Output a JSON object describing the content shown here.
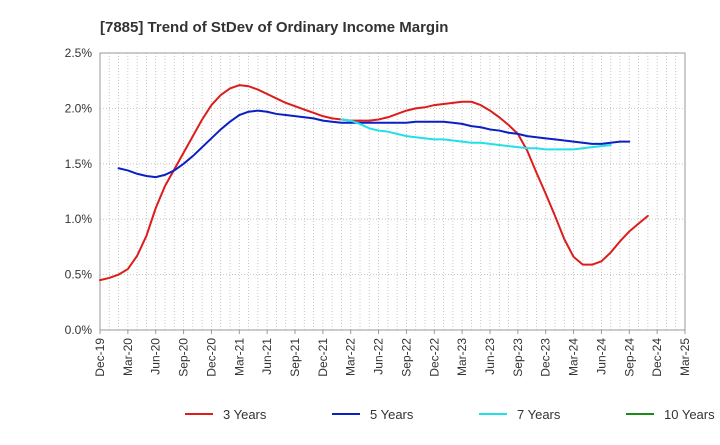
{
  "chart_data": {
    "type": "line",
    "title": "[7885]  Trend of StDev of Ordinary Income Margin",
    "xlabel": "",
    "ylabel": "",
    "x_tick_labels": [
      "Dec-19",
      "Mar-20",
      "Jun-20",
      "Sep-20",
      "Dec-20",
      "Mar-21",
      "Jun-21",
      "Sep-21",
      "Dec-21",
      "Mar-22",
      "Jun-22",
      "Sep-22",
      "Dec-22",
      "Mar-23",
      "Jun-23",
      "Sep-23",
      "Dec-23",
      "Mar-24",
      "Jun-24",
      "Sep-24",
      "Dec-24",
      "Mar-25"
    ],
    "y_ticks": [
      0.0,
      0.5,
      1.0,
      1.5,
      2.0,
      2.5
    ],
    "y_tick_labels": [
      "0.0%",
      "0.5%",
      "1.0%",
      "1.5%",
      "2.0%",
      "2.5%"
    ],
    "ylim": [
      0,
      2.5
    ],
    "y_unit": "%",
    "grid": true,
    "legend_position": "bottom",
    "series": [
      {
        "name": "3 Years",
        "color": "#dd1c1c",
        "start_index": 0,
        "values": [
          0.45,
          0.47,
          0.5,
          0.55,
          0.67,
          0.85,
          1.1,
          1.3,
          1.45,
          1.6,
          1.75,
          1.9,
          2.03,
          2.12,
          2.18,
          2.21,
          2.2,
          2.17,
          2.13,
          2.09,
          2.05,
          2.02,
          1.99,
          1.96,
          1.93,
          1.91,
          1.9,
          1.89,
          1.89,
          1.89,
          1.9,
          1.92,
          1.95,
          1.98,
          2.0,
          2.01,
          2.03,
          2.04,
          2.05,
          2.06,
          2.06,
          2.03,
          1.98,
          1.92,
          1.85,
          1.77,
          1.62,
          1.42,
          1.23,
          1.03,
          0.82,
          0.66,
          0.59,
          0.59,
          0.62,
          0.7,
          0.8,
          0.89,
          0.96,
          1.03
        ]
      },
      {
        "name": "5 Years",
        "color": "#0a1fc4",
        "start_index": 2,
        "values": [
          1.46,
          1.44,
          1.41,
          1.39,
          1.38,
          1.4,
          1.44,
          1.5,
          1.57,
          1.65,
          1.73,
          1.81,
          1.88,
          1.94,
          1.97,
          1.98,
          1.97,
          1.95,
          1.94,
          1.93,
          1.92,
          1.91,
          1.89,
          1.88,
          1.87,
          1.87,
          1.87,
          1.87,
          1.87,
          1.87,
          1.87,
          1.87,
          1.88,
          1.88,
          1.88,
          1.88,
          1.87,
          1.86,
          1.84,
          1.83,
          1.81,
          1.8,
          1.78,
          1.77,
          1.75,
          1.74,
          1.73,
          1.72,
          1.71,
          1.7,
          1.69,
          1.68,
          1.68,
          1.69,
          1.7,
          1.7
        ]
      },
      {
        "name": "7 Years",
        "color": "#22e0e8",
        "start_index": 26,
        "values": [
          1.9,
          1.89,
          1.86,
          1.82,
          1.8,
          1.79,
          1.77,
          1.75,
          1.74,
          1.73,
          1.72,
          1.72,
          1.71,
          1.7,
          1.69,
          1.69,
          1.68,
          1.67,
          1.66,
          1.65,
          1.64,
          1.64,
          1.63,
          1.63,
          1.63,
          1.63,
          1.64,
          1.65,
          1.66,
          1.67
        ]
      },
      {
        "name": "10 Years",
        "color": "#1a8a1a",
        "start_index": 0,
        "values": []
      }
    ]
  }
}
